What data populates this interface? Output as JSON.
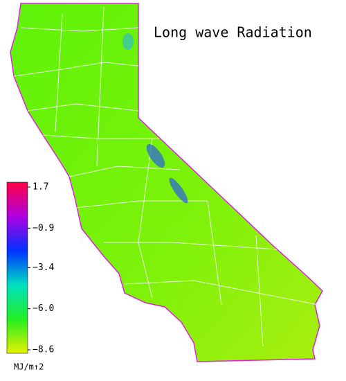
{
  "title": "Long wave Radiation",
  "legend": {
    "unit": "MJ/m↑2",
    "range": [
      -8.6,
      1.7
    ],
    "colors": [
      "#e8f000",
      "#22ee22",
      "#00e0c0",
      "#0030ff",
      "#b000e0",
      "#ff0044"
    ],
    "ticks": [
      {
        "value": 1.7,
        "label": "1.7"
      },
      {
        "value": -0.9,
        "label": "−0.9"
      },
      {
        "value": -3.4,
        "label": "−3.4"
      },
      {
        "value": -6.0,
        "label": "−6.0"
      },
      {
        "value": -8.6,
        "label": "−8.6"
      }
    ]
  }
}
